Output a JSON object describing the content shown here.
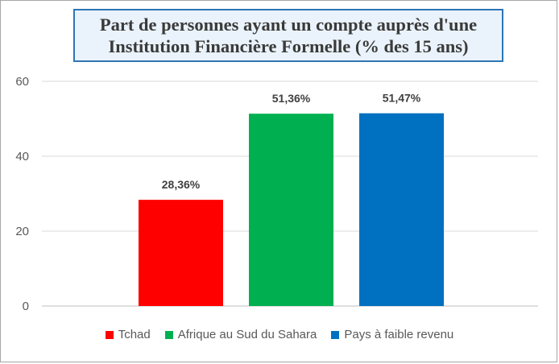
{
  "chart_data": {
    "type": "bar",
    "title_lines": [
      "Part de personnes ayant un compte auprès d'une",
      "Institution Financière Formelle (% des 15 ans)"
    ],
    "categories": [
      "Tchad",
      "Afrique au Sud du Sahara",
      "Pays à faible revenu"
    ],
    "values": [
      28.36,
      51.36,
      51.47
    ],
    "data_labels": [
      "28,36%",
      "51,36%",
      "51,47%"
    ],
    "colors": [
      "#ff0000",
      "#00b050",
      "#0070c0"
    ],
    "ylim": [
      0,
      60
    ],
    "yticks": [
      0,
      20,
      40,
      60
    ],
    "ytick_labels": [
      "0",
      "20",
      "40",
      "60"
    ],
    "grid": true,
    "legend_position": "bottom",
    "xlabel": "",
    "ylabel": ""
  }
}
